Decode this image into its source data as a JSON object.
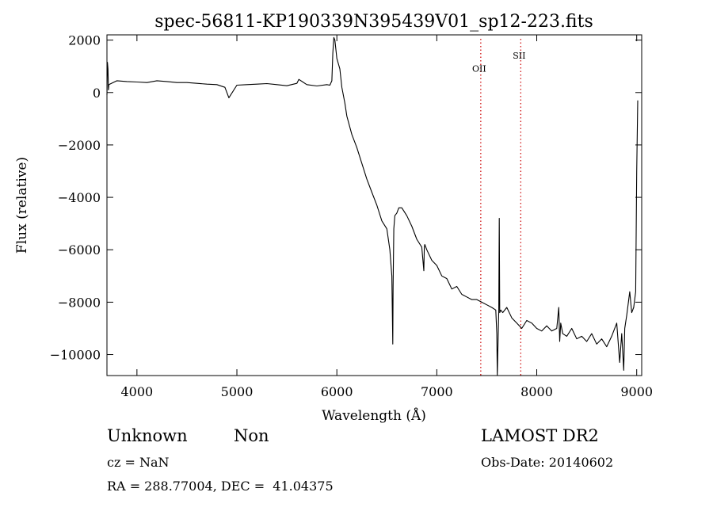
{
  "chart_data": {
    "type": "line",
    "title": "spec-56811-KP190339N395439V01_sp12-223.fits",
    "xlabel": "Wavelength (Å)",
    "ylabel": "Flux (relative)",
    "xlim": [
      3700,
      9050
    ],
    "ylim": [
      -10800,
      2200
    ],
    "x_ticks": [
      4000,
      5000,
      6000,
      7000,
      8000,
      9000
    ],
    "y_ticks": [
      2000,
      0,
      -2000,
      -4000,
      -6000,
      -8000,
      -10000
    ],
    "grid": false,
    "series": [
      {
        "color": "#000000",
        "x": [
          3700,
          3705,
          3710,
          3715,
          3720,
          3800,
          3900,
          4000,
          4100,
          4200,
          4300,
          4400,
          4500,
          4600,
          4700,
          4800,
          4880,
          4920,
          5000,
          5100,
          5200,
          5300,
          5400,
          5500,
          5600,
          5620,
          5700,
          5800,
          5900,
          5930,
          5950,
          5960,
          5970,
          5980,
          6000,
          6030,
          6050,
          6080,
          6100,
          6150,
          6200,
          6250,
          6300,
          6350,
          6400,
          6450,
          6500,
          6530,
          6550,
          6560,
          6563,
          6570,
          6580,
          6600,
          6620,
          6650,
          6700,
          6750,
          6800,
          6850,
          6870,
          6875,
          6880,
          6900,
          6950,
          7000,
          7050,
          7100,
          7150,
          7200,
          7250,
          7300,
          7350,
          7400,
          7450,
          7500,
          7550,
          7590,
          7600,
          7605,
          7620,
          7625,
          7630,
          7640,
          7660,
          7700,
          7750,
          7800,
          7850,
          7900,
          7950,
          8000,
          8050,
          8100,
          8150,
          8200,
          8220,
          8230,
          8240,
          8260,
          8300,
          8350,
          8400,
          8450,
          8500,
          8550,
          8600,
          8650,
          8700,
          8750,
          8800,
          8830,
          8850,
          8870,
          8880,
          8900,
          8930,
          8950,
          8970,
          8990,
          9000,
          9010
        ],
        "values": [
          -100,
          1150,
          900,
          100,
          300,
          450,
          420,
          400,
          380,
          450,
          420,
          380,
          380,
          350,
          320,
          300,
          200,
          -200,
          280,
          300,
          320,
          340,
          300,
          260,
          350,
          500,
          300,
          250,
          300,
          280,
          450,
          1500,
          2100,
          2000,
          1300,
          900,
          200,
          -400,
          -900,
          -1600,
          -2100,
          -2700,
          -3300,
          -3800,
          -4300,
          -4900,
          -5200,
          -6000,
          -7000,
          -9600,
          -7400,
          -5200,
          -4700,
          -4600,
          -4400,
          -4400,
          -4700,
          -5100,
          -5600,
          -5900,
          -6800,
          -5900,
          -5800,
          -6000,
          -6400,
          -6600,
          -7000,
          -7100,
          -7500,
          -7400,
          -7700,
          -7800,
          -7900,
          -7900,
          -8000,
          -8100,
          -8200,
          -8300,
          -9200,
          -10800,
          -8300,
          -4800,
          -8400,
          -8300,
          -8400,
          -8200,
          -8600,
          -8800,
          -9000,
          -8700,
          -8800,
          -9000,
          -9100,
          -8900,
          -9100,
          -9000,
          -8200,
          -9500,
          -8800,
          -9200,
          -9300,
          -9000,
          -9400,
          -9300,
          -9500,
          -9200,
          -9600,
          -9400,
          -9700,
          -9300,
          -8800,
          -10300,
          -9200,
          -10600,
          -9000,
          -8500,
          -7600,
          -8400,
          -8200,
          -7600,
          -3000,
          -300
        ]
      }
    ],
    "annotations": [
      {
        "label": "OII",
        "x": 7440,
        "label_y": 800,
        "line_color": "#cc0000"
      },
      {
        "label": "SII",
        "x": 7840,
        "label_y": 1300,
        "line_color": "#cc0000"
      }
    ]
  },
  "info": {
    "class": "Unknown",
    "subclass": "Non",
    "survey": "LAMOST DR2",
    "cz": "cz = NaN",
    "obs_date": "Obs-Date: 20140602",
    "coords": "RA = 288.77004, DEC =  41.04375"
  }
}
